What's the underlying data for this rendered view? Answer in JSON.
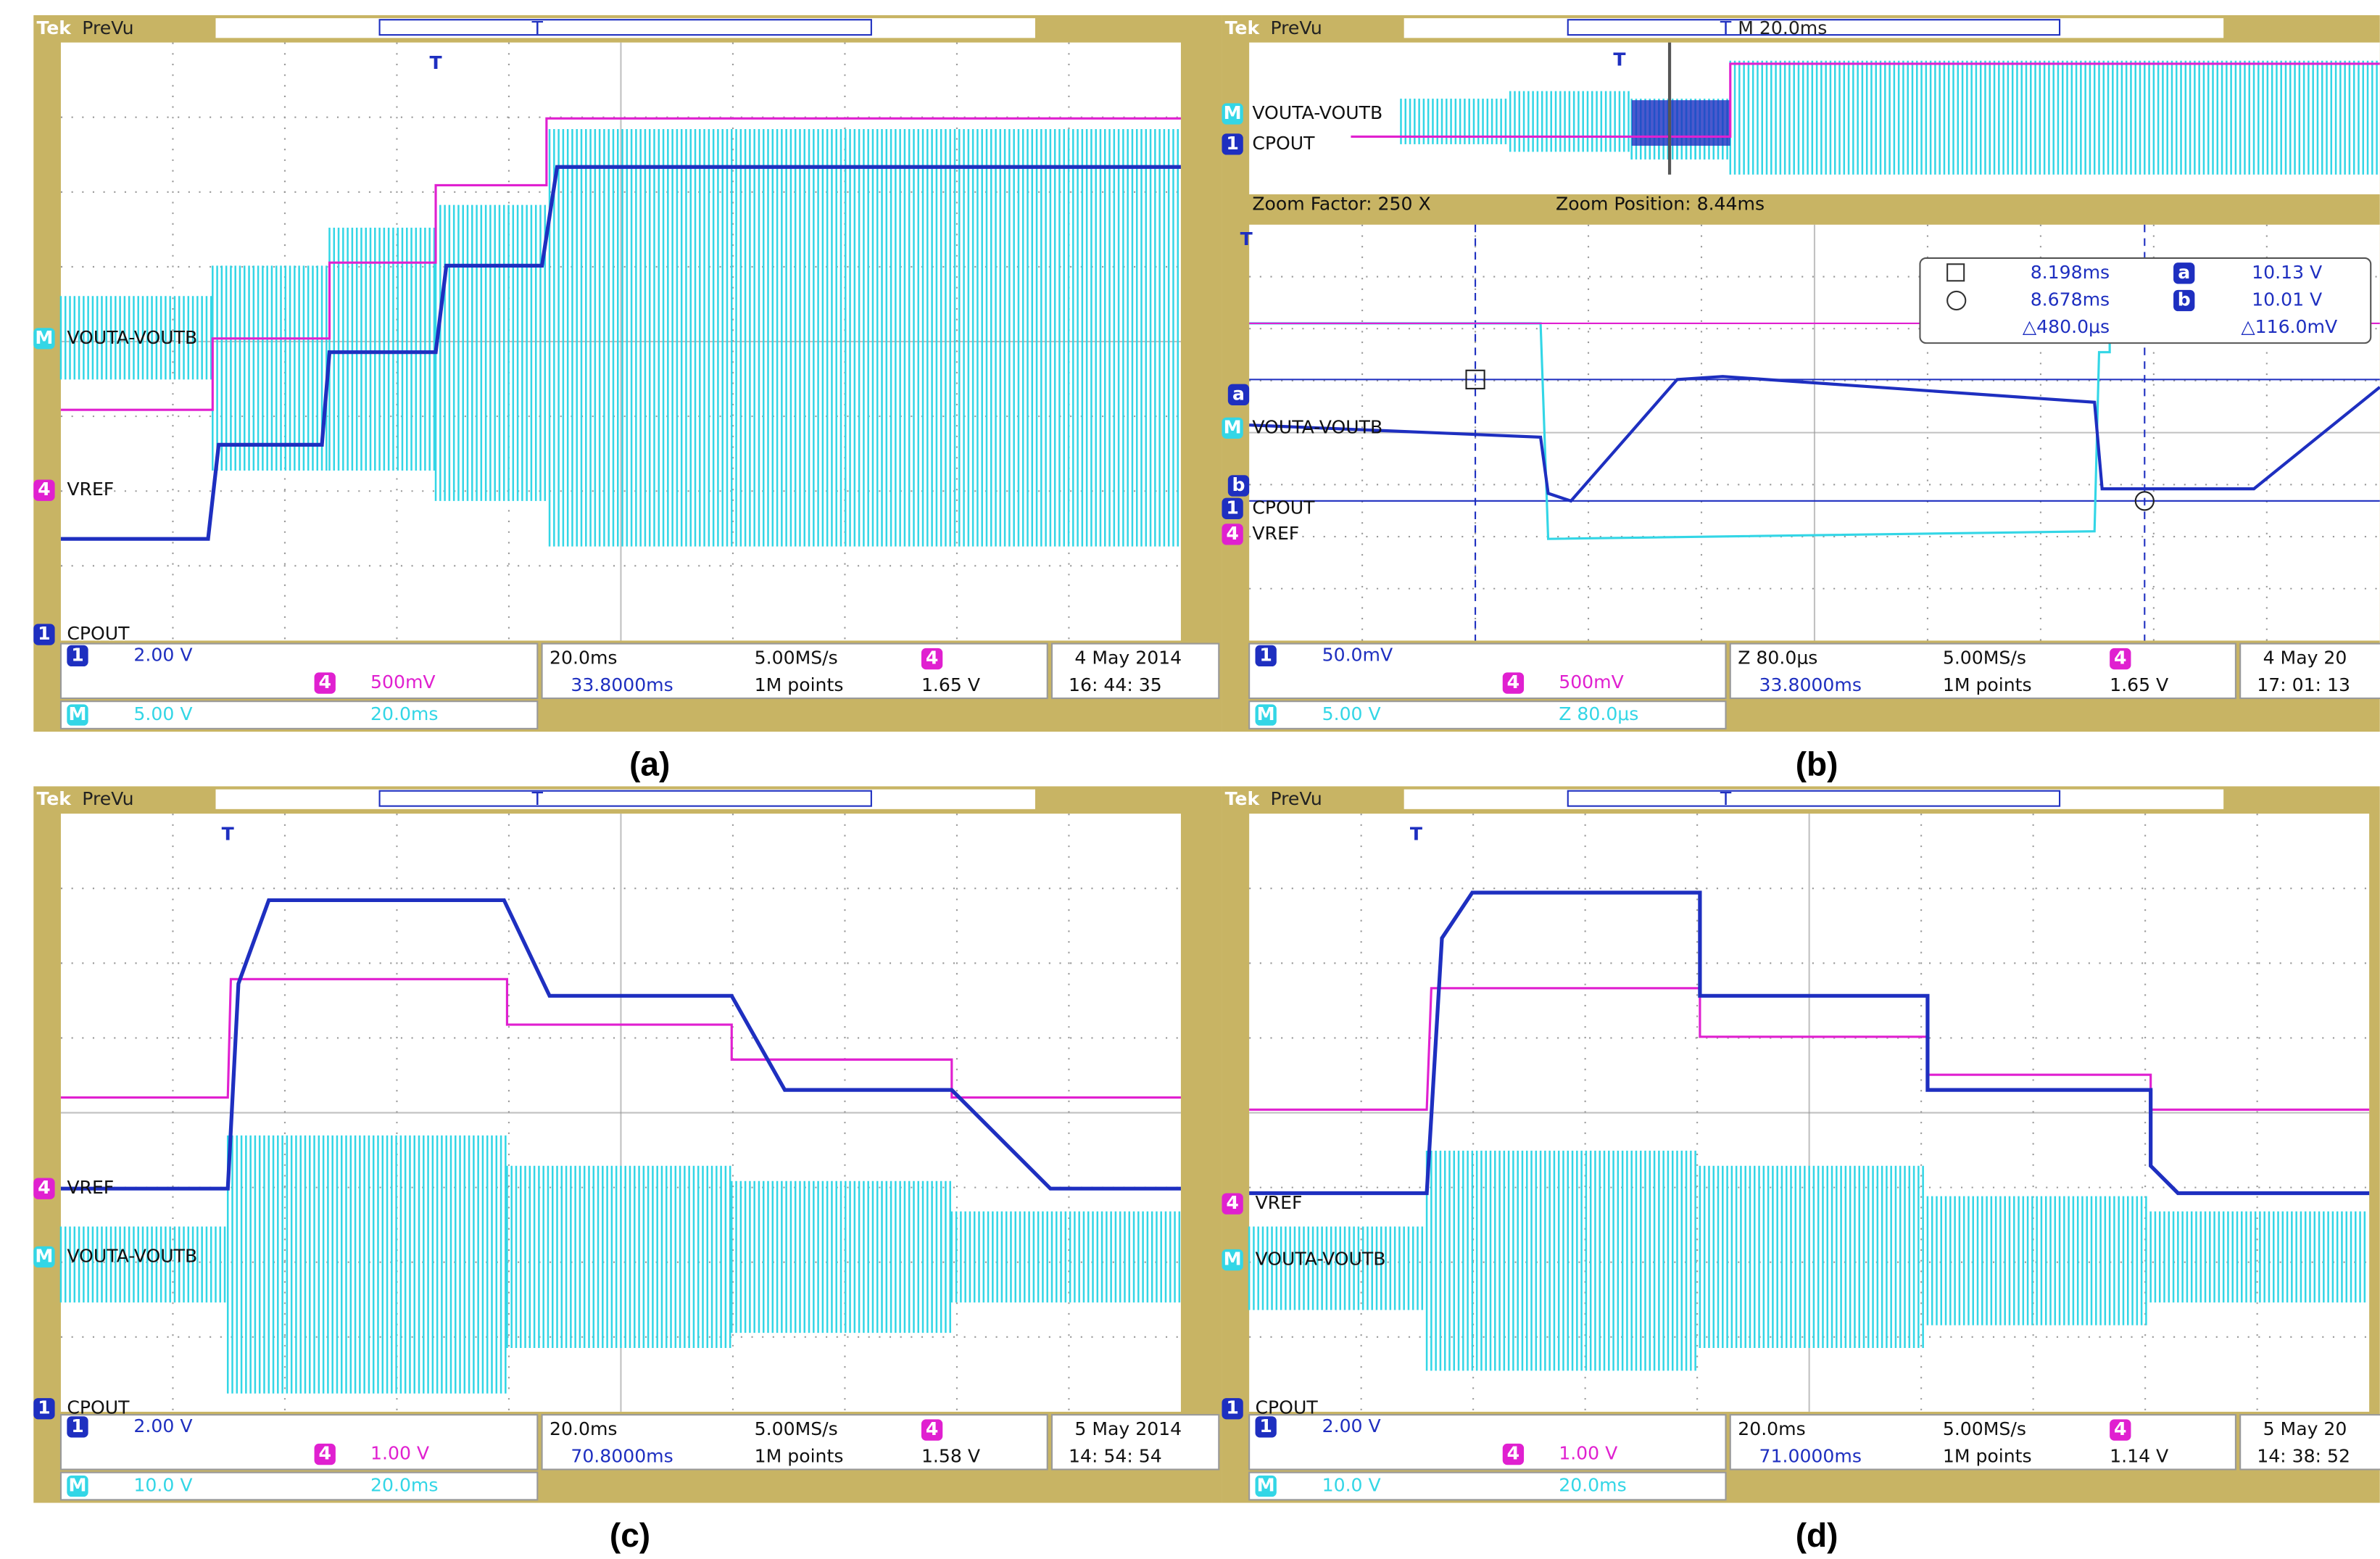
{
  "badges": {
    "ch1": "1",
    "ch4": "4",
    "math": "M",
    "trigger": "T",
    "cursor_a": "a",
    "cursor_b": "b"
  },
  "panels": [
    {
      "label": "(a)",
      "brand": "Tek",
      "mode": "PreVu",
      "traces": [
        "VOUTA-VOUTB",
        "VREF",
        "CPOUT"
      ],
      "ch1": "2.00 V",
      "ch4": "500mV",
      "math": "5.00 V",
      "math_time": "20.0ms",
      "timebase": "20.0ms",
      "sample_rate": "5.00MS/s",
      "trigger_pos": "33.8000ms",
      "record": "1M points",
      "trigger_level": "1.65 V",
      "date": "4 May  2014",
      "time": "16: 44: 35"
    },
    {
      "label": "(b)",
      "brand": "Tek",
      "mode": "PreVu",
      "traces": [
        "VOUTA-VOUTB",
        "CPOUT",
        "VREF"
      ],
      "overview_traces": [
        "VOUTA-VOUTB",
        "CPOUT"
      ],
      "overview_timebase": "M 20.0ms",
      "zoom_factor": "Zoom Factor: 250 X",
      "zoom_position": "Zoom Position: 8.44ms",
      "cursors": {
        "t1": "8.198ms",
        "v1": "10.13 V",
        "t2": "8.678ms",
        "v2": "10.01 V",
        "dt": "△480.0μs",
        "dv": "△116.0mV"
      },
      "ch1": "50.0mV",
      "ch4": "500mV",
      "math": "5.00 V",
      "math_time": "Z 80.0μs",
      "timebase": "Z 80.0μs",
      "sample_rate": "5.00MS/s",
      "trigger_pos": "33.8000ms",
      "record": "1M points",
      "trigger_level": "1.65 V",
      "date": "4 May  20",
      "time": "17: 01: 13"
    },
    {
      "label": "(c)",
      "brand": "Tek",
      "mode": "PreVu",
      "traces": [
        "VREF",
        "VOUTA-VOUTB",
        "CPOUT"
      ],
      "ch1": "2.00 V",
      "ch4": "1.00 V",
      "math": "10.0 V",
      "math_time": "20.0ms",
      "timebase": "20.0ms",
      "sample_rate": "5.00MS/s",
      "trigger_pos": "70.8000ms",
      "record": "1M points",
      "trigger_level": "1.58 V",
      "date": "5 May  2014",
      "time": "14: 54: 54"
    },
    {
      "label": "(d)",
      "brand": "Tek",
      "mode": "PreVu",
      "traces": [
        "VREF",
        "VOUTA-VOUTB",
        "CPOUT"
      ],
      "ch1": "2.00 V",
      "ch4": "1.00 V",
      "math": "10.0 V",
      "math_time": "20.0ms",
      "timebase": "20.0ms",
      "sample_rate": "5.00MS/s",
      "trigger_pos": "71.0000ms",
      "record": "1M points",
      "trigger_level": "1.14 V",
      "date": "5 May  20",
      "time": "14: 38: 52"
    }
  ]
}
